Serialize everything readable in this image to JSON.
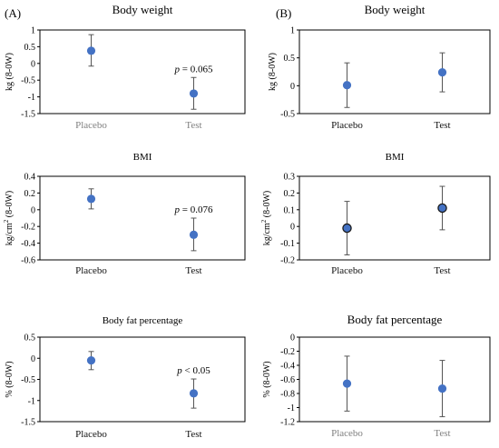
{
  "panel_labels": {
    "left": "(A)",
    "right": "(B)"
  },
  "colors": {
    "point": "#4472C4",
    "point_outline_dark": "#1a1a1a",
    "errorbar": "#555555",
    "frame": "#000000",
    "muted_tick": "#7f7f7f"
  },
  "chart_data": [
    {
      "type": "scatter",
      "panel": "A",
      "title": "Body weight",
      "ylabel": "kg (8-0W)",
      "ylim": [
        -1.5,
        1
      ],
      "yticks": [
        1,
        0.5,
        0,
        -0.5,
        -1,
        -1.5
      ],
      "ytick_labels": [
        "1",
        "0.5",
        "0",
        "-0.5",
        "-1",
        "-1.5"
      ],
      "categories": [
        "Placebo",
        "Test"
      ],
      "values": [
        0.38,
        -0.9
      ],
      "err_low": [
        -0.08,
        -1.37
      ],
      "err_high": [
        0.86,
        -0.42
      ],
      "annotation": {
        "italic": "p",
        "text": " = 0.065",
        "category_index": 1
      },
      "category_label_colors": [
        "#7f7f7f",
        "#7f7f7f"
      ],
      "point_outline": false
    },
    {
      "type": "scatter",
      "panel": "A",
      "title": "BMI",
      "ylabel_main": "kg/cm",
      "ylabel_sup": "2",
      "ylabel_tail": " (8-0W)",
      "ylim": [
        -0.6,
        0.4
      ],
      "yticks": [
        0.4,
        0.2,
        0,
        -0.2,
        -0.4,
        -0.6
      ],
      "ytick_labels": [
        "0.4",
        "0.2",
        "0",
        "-0.2",
        "-0.4",
        "-0.6"
      ],
      "categories": [
        "Placebo",
        "Test"
      ],
      "values": [
        0.13,
        -0.3
      ],
      "err_low": [
        0.01,
        -0.49
      ],
      "err_high": [
        0.25,
        -0.1
      ],
      "annotation": {
        "italic": "p",
        "text": " = 0.076",
        "category_index": 1
      },
      "category_label_colors": [
        "#111111",
        "#111111"
      ],
      "point_outline": false
    },
    {
      "type": "scatter",
      "panel": "A",
      "title": "Body fat percentage",
      "ylabel": "% (8-0W)",
      "ylim": [
        -1.5,
        0.5
      ],
      "yticks": [
        0.5,
        0,
        -0.5,
        -1,
        -1.5
      ],
      "ytick_labels": [
        "0.5",
        "0",
        "-0.5",
        "-1",
        "-1.5"
      ],
      "categories": [
        "Placebo",
        "Test"
      ],
      "values": [
        -0.05,
        -0.83
      ],
      "err_low": [
        -0.27,
        -1.18
      ],
      "err_high": [
        0.16,
        -0.49
      ],
      "annotation": {
        "italic": "p",
        "text": " < 0.05",
        "category_index": 1
      },
      "category_label_colors": [
        "#111111",
        "#111111"
      ],
      "point_outline": false
    },
    {
      "type": "scatter",
      "panel": "B",
      "title": "Body weight",
      "ylabel": "kg (8-0W)",
      "ylim": [
        -0.5,
        1
      ],
      "yticks": [
        1,
        0.5,
        0,
        -0.5
      ],
      "ytick_labels": [
        "1",
        "0.5",
        "0",
        "-0.5"
      ],
      "categories": [
        "Placebo",
        "Test"
      ],
      "values": [
        0.01,
        0.24
      ],
      "err_low": [
        -0.39,
        -0.11
      ],
      "err_high": [
        0.41,
        0.59
      ],
      "annotation": null,
      "category_label_colors": [
        "#111111",
        "#111111"
      ],
      "point_outline": false
    },
    {
      "type": "scatter",
      "panel": "B",
      "title": "BMI",
      "ylabel_main": "kg/cm",
      "ylabel_sup": "2",
      "ylabel_tail": " (8-0W)",
      "ylim": [
        -0.2,
        0.3
      ],
      "yticks": [
        0.3,
        0.2,
        0.1,
        0,
        -0.1,
        -0.2
      ],
      "ytick_labels": [
        "0.3",
        "0.2",
        "0.1",
        "0",
        "-0.1",
        "-0.2"
      ],
      "categories": [
        "Placebo",
        "Test"
      ],
      "values": [
        -0.01,
        0.11
      ],
      "err_low": [
        -0.17,
        -0.02
      ],
      "err_high": [
        0.15,
        0.24
      ],
      "annotation": null,
      "category_label_colors": [
        "#111111",
        "#111111"
      ],
      "point_outline": true
    },
    {
      "type": "scatter",
      "panel": "B",
      "title": "Body fat percentage",
      "ylabel": "% (8-0W)",
      "ylim": [
        -1.2,
        0
      ],
      "yticks": [
        0,
        -0.2,
        -0.4,
        -0.6,
        -0.8,
        -1,
        -1.2
      ],
      "ytick_labels": [
        "0",
        "-0.2",
        "-0.4",
        "-0.6",
        "-0.8",
        "-1",
        "-1.2"
      ],
      "categories": [
        "Placebo",
        "Test"
      ],
      "values": [
        -0.66,
        -0.73
      ],
      "err_low": [
        -1.05,
        -1.13
      ],
      "err_high": [
        -0.27,
        -0.33
      ],
      "annotation": null,
      "category_label_colors": [
        "#7f7f7f",
        "#7f7f7f"
      ],
      "point_outline": false
    }
  ]
}
